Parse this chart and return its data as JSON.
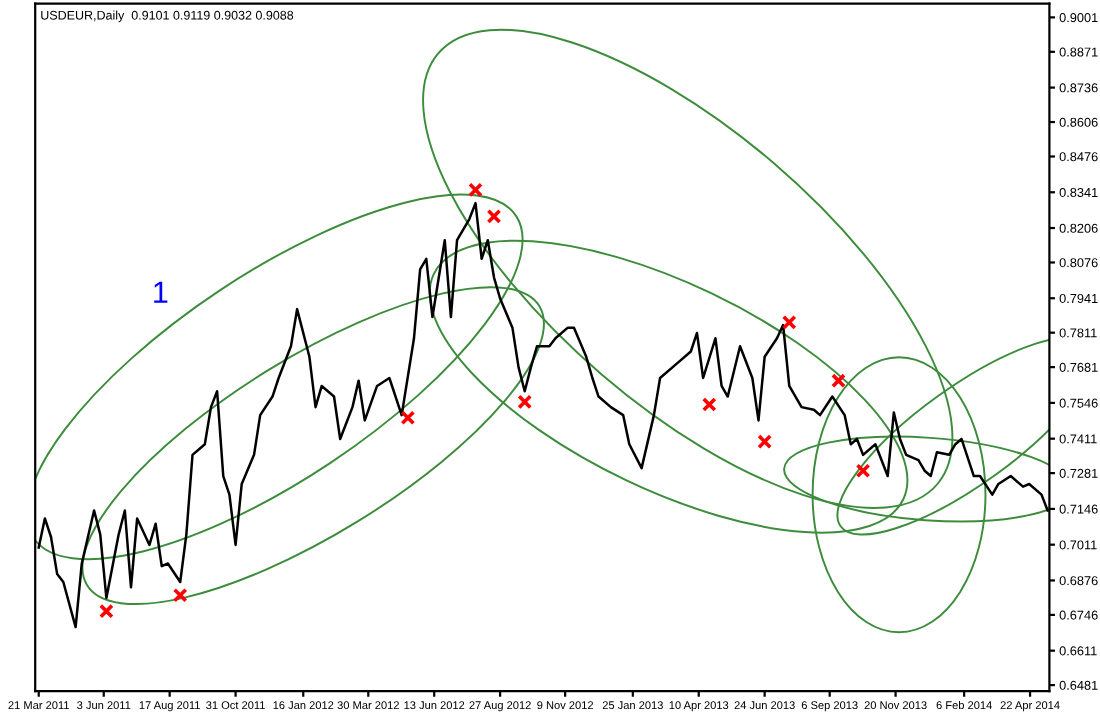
{
  "chart_data": {
    "type": "line",
    "title": "USDEUR,Daily  0.9101 0.9119 0.9032 0.9088",
    "annotations": [
      "1"
    ],
    "xlim": [
      "2011-03-17",
      "2014-05-14"
    ],
    "ylim": [
      0.6458,
      0.9053
    ],
    "xticks": [
      {
        "value": "2011-03-21",
        "label": "21 Mar 2011"
      },
      {
        "value": "2011-06-03",
        "label": "3 Jun 2011"
      },
      {
        "value": "2011-08-17",
        "label": "17 Aug 2011"
      },
      {
        "value": "2011-10-31",
        "label": "31 Oct 2011"
      },
      {
        "value": "2012-01-16",
        "label": "16 Jan 2012"
      },
      {
        "value": "2012-03-30",
        "label": "30 Mar 2012"
      },
      {
        "value": "2012-06-13",
        "label": "13 Jun 2012"
      },
      {
        "value": "2012-08-27",
        "label": "27 Aug 2012"
      },
      {
        "value": "2012-11-09",
        "label": "9 Nov 2012"
      },
      {
        "value": "2013-01-25",
        "label": "25 Jan 2013"
      },
      {
        "value": "2013-04-10",
        "label": "10 Apr 2013"
      },
      {
        "value": "2013-06-24",
        "label": "24 Jun 2013"
      },
      {
        "value": "2013-09-06",
        "label": "6 Sep 2013"
      },
      {
        "value": "2013-11-20",
        "label": "20 Nov 2013"
      },
      {
        "value": "2014-02-06",
        "label": "6 Feb 2014"
      },
      {
        "value": "2014-04-22",
        "label": "22 Apr 2014"
      }
    ],
    "yticks": [
      0.9001,
      0.8871,
      0.8736,
      0.8606,
      0.8476,
      0.8341,
      0.8206,
      0.8076,
      0.7941,
      0.7811,
      0.7681,
      0.7546,
      0.7411,
      0.7281,
      0.7146,
      0.7011,
      0.6876,
      0.6746,
      0.6611,
      0.6481
    ],
    "grid": false,
    "legend": false,
    "series": [
      {
        "color": "#000000",
        "marker": "none",
        "x": [
          "2011-03-21",
          "2011-03-28",
          "2011-04-04",
          "2011-04-11",
          "2011-04-18",
          "2011-05-02",
          "2011-05-09",
          "2011-05-23",
          "2011-05-30",
          "2011-06-06",
          "2011-06-20",
          "2011-06-27",
          "2011-07-04",
          "2011-07-11",
          "2011-07-25",
          "2011-08-01",
          "2011-08-08",
          "2011-08-15",
          "2011-08-29",
          "2011-09-05",
          "2011-09-12",
          "2011-09-26",
          "2011-10-03",
          "2011-10-10",
          "2011-10-17",
          "2011-10-24",
          "2011-10-31",
          "2011-11-07",
          "2011-11-21",
          "2011-11-28",
          "2011-12-12",
          "2011-12-19",
          "2012-01-02",
          "2012-01-09",
          "2012-01-23",
          "2012-01-30",
          "2012-02-06",
          "2012-02-20",
          "2012-02-27",
          "2012-03-12",
          "2012-03-19",
          "2012-03-26",
          "2012-04-09",
          "2012-04-23",
          "2012-05-07",
          "2012-05-21",
          "2012-05-28",
          "2012-06-04",
          "2012-06-11",
          "2012-06-25",
          "2012-07-02",
          "2012-07-09",
          "2012-07-23",
          "2012-07-30",
          "2012-08-06",
          "2012-08-13",
          "2012-08-20",
          "2012-08-27",
          "2012-09-10",
          "2012-09-17",
          "2012-09-24",
          "2012-10-01",
          "2012-10-08",
          "2012-10-22",
          "2012-10-29",
          "2012-11-12",
          "2012-11-19",
          "2012-12-03",
          "2012-12-10",
          "2012-12-17",
          "2012-12-31",
          "2013-01-14",
          "2013-01-21",
          "2013-02-04",
          "2013-02-18",
          "2013-02-25",
          "2013-03-18",
          "2013-04-01",
          "2013-04-08",
          "2013-04-15",
          "2013-04-29",
          "2013-05-06",
          "2013-05-13",
          "2013-05-27",
          "2013-06-10",
          "2013-06-17",
          "2013-06-24",
          "2013-07-08",
          "2013-07-15",
          "2013-07-22",
          "2013-08-05",
          "2013-08-19",
          "2013-08-26",
          "2013-09-09",
          "2013-09-23",
          "2013-09-30",
          "2013-10-07",
          "2013-10-14",
          "2013-10-28",
          "2013-11-11",
          "2013-11-18",
          "2013-11-25",
          "2013-12-02",
          "2013-12-16",
          "2013-12-23",
          "2013-12-30",
          "2014-01-06",
          "2014-01-20",
          "2014-01-27",
          "2014-02-03",
          "2014-02-17",
          "2014-02-24",
          "2014-03-10",
          "2014-03-17",
          "2014-03-31",
          "2014-04-14",
          "2014-04-21",
          "2014-05-05",
          "2014-05-12"
        ],
        "values": [
          0.7,
          0.711,
          0.704,
          0.69,
          0.687,
          0.67,
          0.694,
          0.714,
          0.705,
          0.681,
          0.705,
          0.714,
          0.685,
          0.711,
          0.701,
          0.709,
          0.693,
          0.694,
          0.687,
          0.705,
          0.735,
          0.739,
          0.753,
          0.759,
          0.727,
          0.72,
          0.701,
          0.724,
          0.735,
          0.75,
          0.757,
          0.764,
          0.776,
          0.79,
          0.772,
          0.753,
          0.761,
          0.757,
          0.741,
          0.753,
          0.763,
          0.748,
          0.761,
          0.764,
          0.75,
          0.779,
          0.805,
          0.809,
          0.787,
          0.816,
          0.787,
          0.816,
          0.824,
          0.83,
          0.809,
          0.816,
          0.802,
          0.794,
          0.783,
          0.768,
          0.759,
          0.768,
          0.776,
          0.776,
          0.779,
          0.783,
          0.783,
          0.772,
          0.764,
          0.757,
          0.753,
          0.75,
          0.739,
          0.73,
          0.75,
          0.764,
          0.77,
          0.774,
          0.781,
          0.764,
          0.779,
          0.761,
          0.757,
          0.776,
          0.764,
          0.748,
          0.772,
          0.779,
          0.784,
          0.761,
          0.753,
          0.752,
          0.75,
          0.757,
          0.75,
          0.739,
          0.741,
          0.735,
          0.739,
          0.727,
          0.751,
          0.741,
          0.735,
          0.733,
          0.729,
          0.727,
          0.736,
          0.735,
          0.739,
          0.741,
          0.727,
          0.727,
          0.72,
          0.724,
          0.727,
          0.723,
          0.724,
          0.72,
          0.714
        ]
      },
      {
        "type": "scatter",
        "color": "#ff0000",
        "marker": "cross",
        "x": [
          "2011-06-06",
          "2011-08-29",
          "2012-05-14",
          "2012-07-30",
          "2012-08-20",
          "2012-09-24",
          "2013-04-22",
          "2013-06-24",
          "2013-07-22",
          "2013-09-16",
          "2013-10-14"
        ],
        "values": [
          0.676,
          0.682,
          0.749,
          0.835,
          0.825,
          0.755,
          0.754,
          0.74,
          0.785,
          0.763,
          0.729
        ]
      }
    ]
  }
}
